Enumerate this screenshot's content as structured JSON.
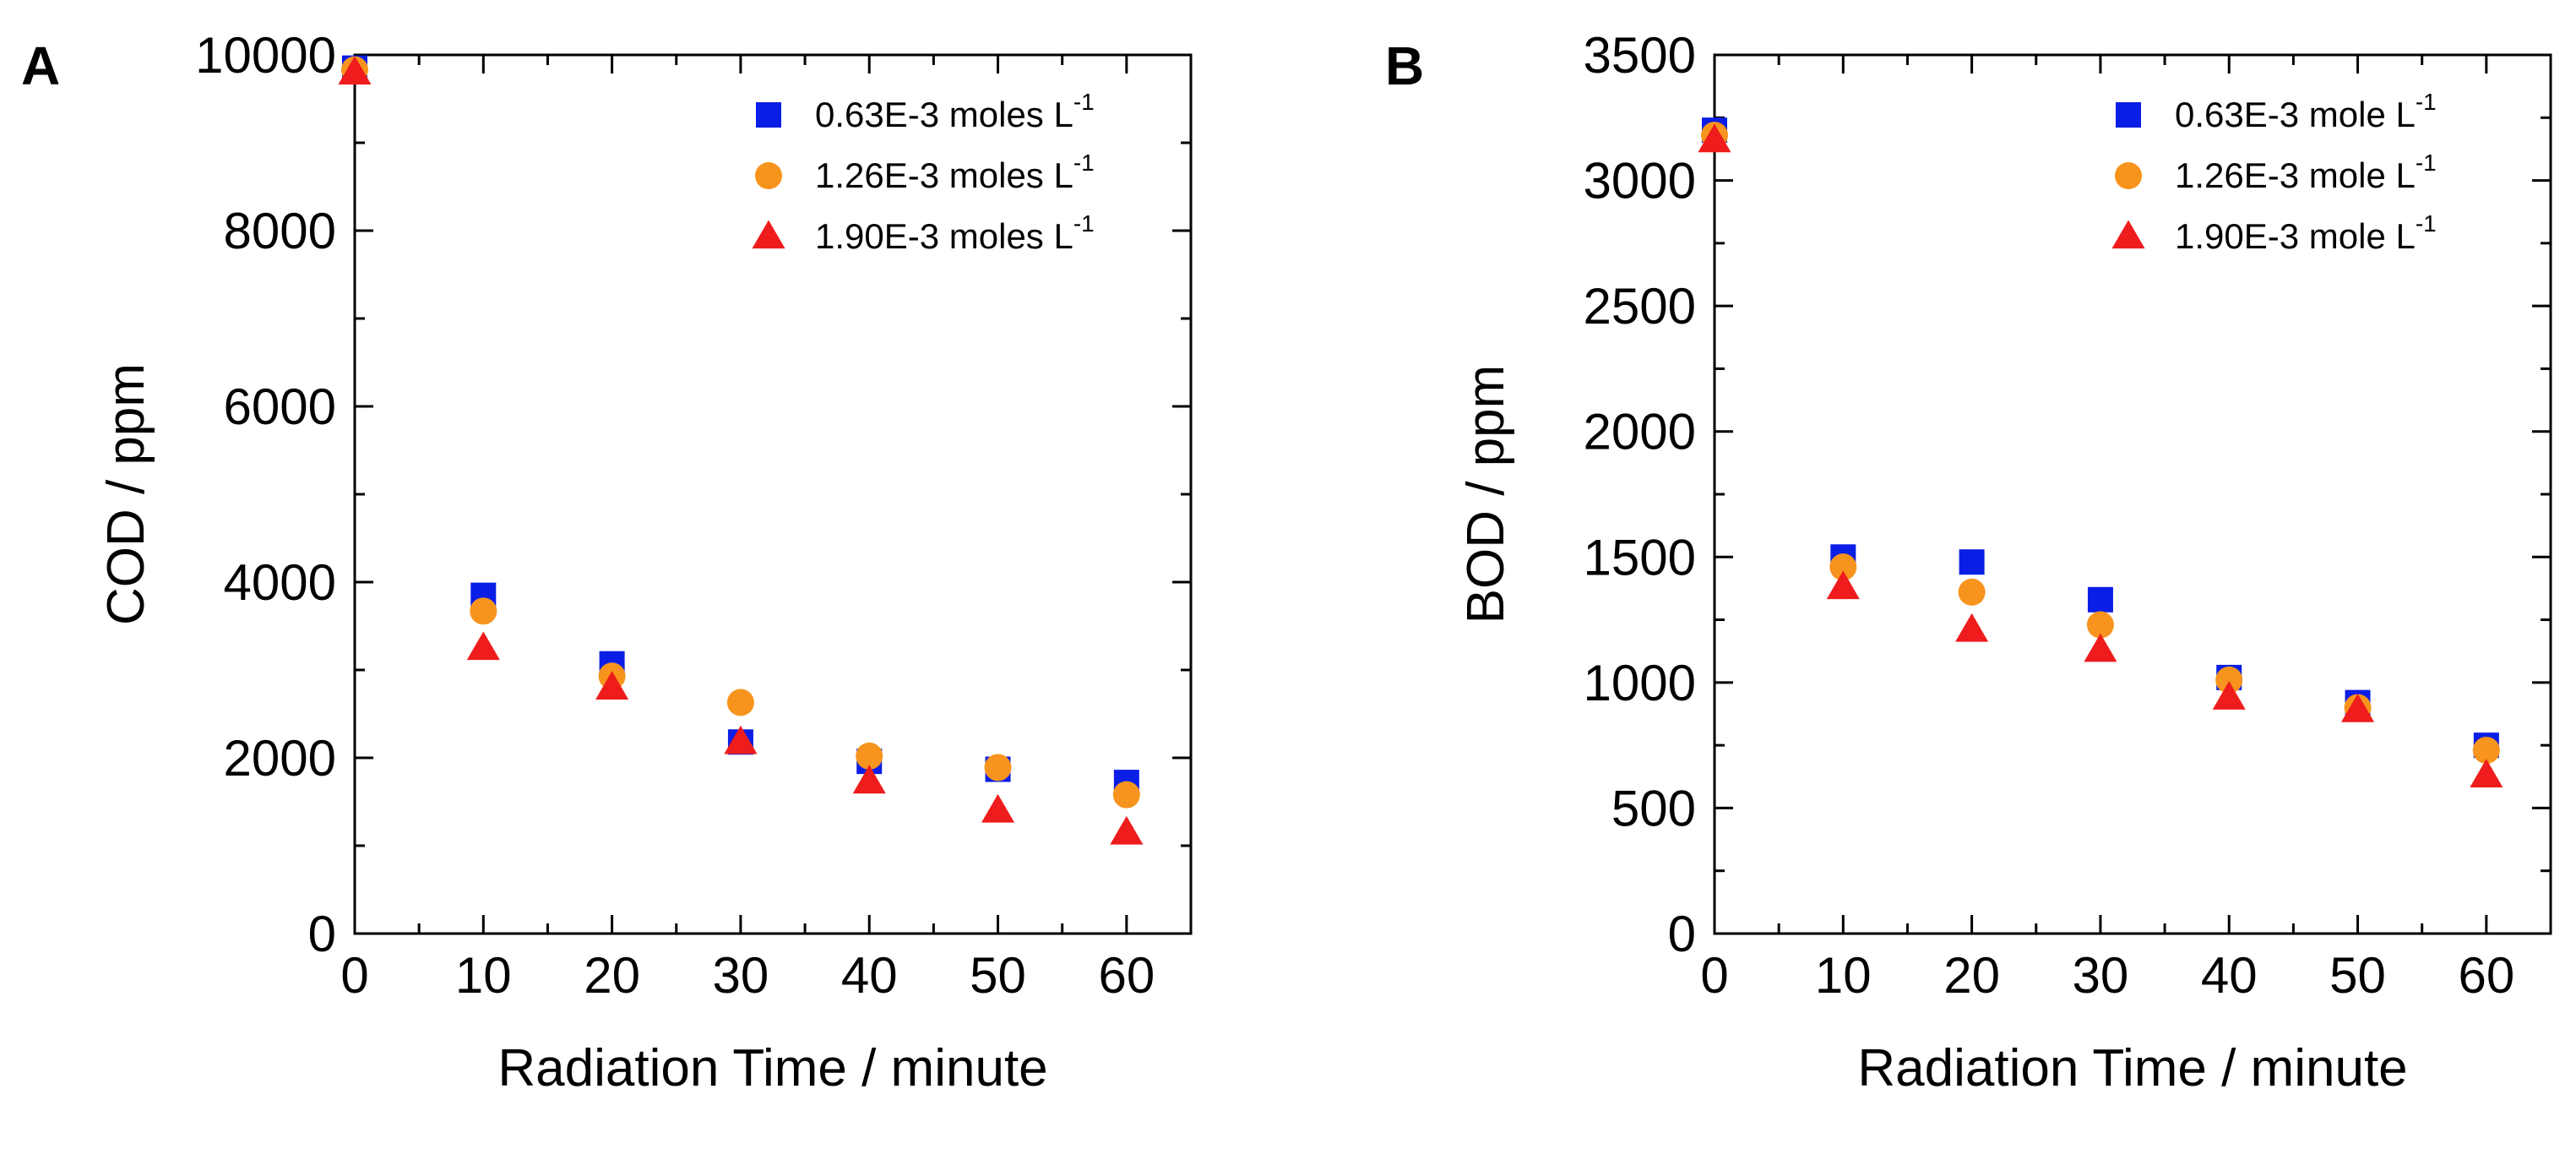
{
  "chart_data": [
    {
      "panel_label": "A",
      "type": "scatter",
      "xlabel": "Radiation Time / minute",
      "ylabel": "COD / ppm",
      "xlim": [
        0,
        65
      ],
      "ylim": [
        0,
        10000
      ],
      "xticks": [
        0,
        10,
        20,
        30,
        40,
        50,
        60
      ],
      "yticks": [
        0,
        2000,
        4000,
        6000,
        8000,
        10000
      ],
      "legend_position": "top-right",
      "series": [
        {
          "name": "0.63E-3 moles L",
          "unit_sup": "-1",
          "marker": "square",
          "color": "#0b1ee6",
          "x": [
            0,
            10,
            20,
            30,
            40,
            50,
            60
          ],
          "y": [
            9850,
            3850,
            3070,
            2180,
            1960,
            1870,
            1720
          ]
        },
        {
          "name": "1.26E-3 moles L",
          "unit_sup": "-1",
          "marker": "circle",
          "color": "#f7941d",
          "x": [
            0,
            10,
            20,
            30,
            40,
            50,
            60
          ],
          "y": [
            9830,
            3670,
            2930,
            2630,
            2020,
            1890,
            1580
          ]
        },
        {
          "name": "1.90E-3 moles L",
          "unit_sup": "-1",
          "marker": "triangle",
          "color": "#ee1c1c",
          "x": [
            0,
            10,
            20,
            30,
            40,
            50,
            60
          ],
          "y": [
            9800,
            3250,
            2800,
            2180,
            1730,
            1400,
            1150
          ]
        }
      ]
    },
    {
      "panel_label": "B",
      "type": "scatter",
      "xlabel": "Radiation Time / minute",
      "ylabel": "BOD / ppm",
      "xlim": [
        0,
        65
      ],
      "ylim": [
        0,
        3500
      ],
      "xticks": [
        0,
        10,
        20,
        30,
        40,
        50,
        60
      ],
      "yticks": [
        0,
        500,
        1000,
        1500,
        2000,
        2500,
        3000,
        3500
      ],
      "legend_position": "top-right",
      "series": [
        {
          "name": "0.63E-3 mole L",
          "unit_sup": "-1",
          "marker": "square",
          "color": "#0b1ee6",
          "x": [
            0,
            10,
            20,
            30,
            40,
            50,
            60
          ],
          "y": [
            3200,
            1500,
            1480,
            1330,
            1020,
            920,
            750
          ]
        },
        {
          "name": "1.26E-3 mole L",
          "unit_sup": "-1",
          "marker": "circle",
          "color": "#f7941d",
          "x": [
            0,
            10,
            20,
            30,
            40,
            50,
            60
          ],
          "y": [
            3180,
            1460,
            1360,
            1230,
            1010,
            900,
            730
          ]
        },
        {
          "name": "1.90E-3 mole L",
          "unit_sup": "-1",
          "marker": "triangle",
          "color": "#ee1c1c",
          "x": [
            0,
            10,
            20,
            30,
            40,
            50,
            60
          ],
          "y": [
            3160,
            1380,
            1210,
            1130,
            940,
            890,
            630
          ]
        }
      ]
    }
  ]
}
